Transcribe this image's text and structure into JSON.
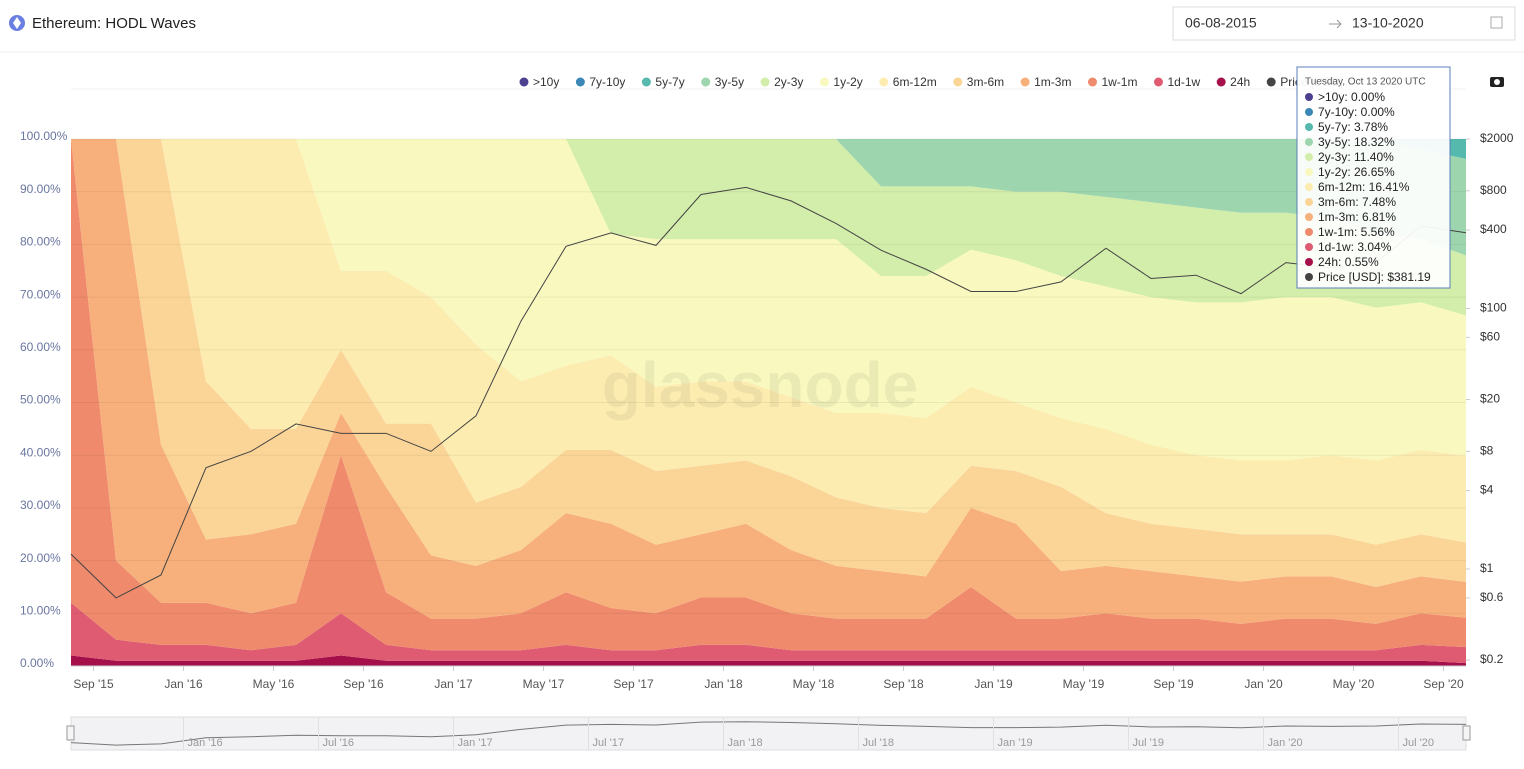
{
  "header": {
    "title": "Ethereum: HODL Waves",
    "date_from": "06-08-2015",
    "date_to": "13-10-2020"
  },
  "chart_data": {
    "type": "stacked_area",
    "watermark": "glassnode",
    "x": [
      "2015-08",
      "2015-10",
      "2015-12",
      "2016-02",
      "2016-04",
      "2016-06",
      "2016-08",
      "2016-10",
      "2016-12",
      "2017-02",
      "2017-04",
      "2017-06",
      "2017-08",
      "2017-10",
      "2017-12",
      "2018-02",
      "2018-04",
      "2018-06",
      "2018-08",
      "2018-10",
      "2018-12",
      "2019-02",
      "2019-04",
      "2019-06",
      "2019-08",
      "2019-10",
      "2019-12",
      "2020-02",
      "2020-04",
      "2020-06",
      "2020-08",
      "2020-10"
    ],
    "xlim": [
      "2015-08",
      "2020-10"
    ],
    "xticks": [
      {
        "value": "2015-09",
        "label": "Sep '15"
      },
      {
        "value": "2016-01",
        "label": "Jan '16"
      },
      {
        "value": "2016-05",
        "label": "May '16"
      },
      {
        "value": "2016-09",
        "label": "Sep '16"
      },
      {
        "value": "2017-01",
        "label": "Jan '17"
      },
      {
        "value": "2017-05",
        "label": "May '17"
      },
      {
        "value": "2017-09",
        "label": "Sep '17"
      },
      {
        "value": "2018-01",
        "label": "Jan '18"
      },
      {
        "value": "2018-05",
        "label": "May '18"
      },
      {
        "value": "2018-09",
        "label": "Sep '18"
      },
      {
        "value": "2019-01",
        "label": "Jan '19"
      },
      {
        "value": "2019-05",
        "label": "May '19"
      },
      {
        "value": "2019-09",
        "label": "Sep '19"
      },
      {
        "value": "2020-01",
        "label": "Jan '20"
      },
      {
        "value": "2020-05",
        "label": "May '20"
      },
      {
        "value": "2020-09",
        "label": "Sep '20"
      }
    ],
    "navigator_ticks": [
      {
        "value": "2016-01",
        "label": "Jan '16"
      },
      {
        "value": "2016-07",
        "label": "Jul '16"
      },
      {
        "value": "2017-01",
        "label": "Jan '17"
      },
      {
        "value": "2017-07",
        "label": "Jul '17"
      },
      {
        "value": "2018-01",
        "label": "Jan '18"
      },
      {
        "value": "2018-07",
        "label": "Jul '18"
      },
      {
        "value": "2019-01",
        "label": "Jan '19"
      },
      {
        "value": "2019-07",
        "label": "Jul '19"
      },
      {
        "value": "2020-01",
        "label": "Jan '20"
      },
      {
        "value": "2020-07",
        "label": "Jul '20"
      }
    ],
    "ylim": [
      0,
      100
    ],
    "yticks": [
      {
        "value": 0,
        "label": "0.00%"
      },
      {
        "value": 10,
        "label": "10.00%"
      },
      {
        "value": 20,
        "label": "20.00%"
      },
      {
        "value": 30,
        "label": "30.00%"
      },
      {
        "value": 40,
        "label": "40.00%"
      },
      {
        "value": 50,
        "label": "50.00%"
      },
      {
        "value": 60,
        "label": "60.00%"
      },
      {
        "value": 70,
        "label": "70.00%"
      },
      {
        "value": 80,
        "label": "80.00%"
      },
      {
        "value": 90,
        "label": "90.00%"
      },
      {
        "value": 100,
        "label": "100.00%"
      }
    ],
    "y2lim": [
      0.18,
      2000
    ],
    "y2_log": true,
    "y2ticks": [
      {
        "value": 0.2,
        "label": "$0.2"
      },
      {
        "value": 0.6,
        "label": "$0.6"
      },
      {
        "value": 1,
        "label": "$1"
      },
      {
        "value": 4,
        "label": "$4"
      },
      {
        "value": 8,
        "label": "$8"
      },
      {
        "value": 20,
        "label": "$20"
      },
      {
        "value": 60,
        "label": "$60"
      },
      {
        "value": 100,
        "label": "$100"
      },
      {
        "value": 400,
        "label": "$400"
      },
      {
        "value": 800,
        "label": "$800"
      },
      {
        "value": 2000,
        "label": "$2000"
      }
    ],
    "grid": true,
    "series": [
      {
        "name": ">10y",
        "color": "#4b3f8f",
        "values": [
          0,
          0,
          0,
          0,
          0,
          0,
          0,
          0,
          0,
          0,
          0,
          0,
          0,
          0,
          0,
          0,
          0,
          0,
          0,
          0,
          0,
          0,
          0,
          0,
          0,
          0,
          0,
          0,
          0,
          0,
          0,
          0
        ]
      },
      {
        "name": "7y-10y",
        "color": "#3a87b8",
        "values": [
          0,
          0,
          0,
          0,
          0,
          0,
          0,
          0,
          0,
          0,
          0,
          0,
          0,
          0,
          0,
          0,
          0,
          0,
          0,
          0,
          0,
          0,
          0,
          0,
          0,
          0,
          0,
          0,
          0,
          0,
          0,
          0
        ]
      },
      {
        "name": "5y-7y",
        "color": "#55b9ad",
        "values": [
          0,
          0,
          0,
          0,
          0,
          0,
          0,
          0,
          0,
          0,
          0,
          0,
          0,
          0,
          0,
          0,
          0,
          0,
          0,
          0,
          0,
          0,
          0,
          0,
          0,
          0,
          0,
          0,
          0,
          0,
          2,
          3.78
        ]
      },
      {
        "name": "3y-5y",
        "color": "#9dd6ae",
        "values": [
          0,
          0,
          0,
          0,
          0,
          0,
          0,
          0,
          0,
          0,
          0,
          0,
          0,
          0,
          0,
          0,
          0,
          0,
          9,
          9,
          9,
          10,
          10,
          11,
          12,
          13,
          14,
          14,
          15,
          18,
          17,
          18.32
        ]
      },
      {
        "name": "2y-3y",
        "color": "#d3edaa",
        "values": [
          0,
          0,
          0,
          0,
          0,
          0,
          0,
          0,
          0,
          0,
          0,
          0,
          18,
          19,
          19,
          19,
          19,
          19,
          17,
          17,
          12,
          13,
          16,
          17,
          18,
          18,
          17,
          16,
          15,
          14,
          12,
          11.4
        ]
      },
      {
        "name": "1y-2y",
        "color": "#f8f8bf",
        "values": [
          0,
          0,
          0,
          0,
          0,
          0,
          25,
          25,
          30,
          39,
          46,
          43,
          23,
          28,
          27,
          27,
          30,
          33,
          26,
          27,
          26,
          27,
          27,
          27,
          28,
          29,
          30,
          31,
          30,
          29,
          28,
          26.65
        ]
      },
      {
        "name": "6m-12m",
        "color": "#fcecb0",
        "values": [
          0,
          0,
          0,
          46,
          55,
          55,
          15,
          29,
          24,
          30,
          20,
          16,
          18,
          16,
          16,
          15,
          15,
          16,
          18,
          18,
          15,
          13,
          13,
          16,
          15,
          14,
          14,
          14,
          15,
          16,
          16,
          16.41
        ]
      },
      {
        "name": "3m-6m",
        "color": "#fbd597",
        "values": [
          0,
          0,
          58,
          30,
          20,
          18,
          12,
          12,
          25,
          12,
          12,
          12,
          14,
          14,
          13,
          12,
          14,
          13,
          12,
          12,
          8,
          10,
          16,
          10,
          9,
          9,
          9,
          8,
          8,
          8,
          8,
          7.48
        ]
      },
      {
        "name": "1m-3m",
        "color": "#f7b07c",
        "values": [
          0,
          80,
          30,
          12,
          15,
          15,
          8,
          20,
          12,
          10,
          12,
          15,
          16,
          13,
          12,
          14,
          12,
          10,
          9,
          8,
          15,
          18,
          9,
          9,
          9,
          8,
          8,
          8,
          8,
          7,
          7,
          6.81
        ]
      },
      {
        "name": "1w-1m",
        "color": "#ef8a6c",
        "values": [
          88,
          15,
          8,
          8,
          7,
          8,
          30,
          10,
          6,
          6,
          7,
          10,
          8,
          7,
          9,
          9,
          7,
          6,
          6,
          6,
          12,
          6,
          6,
          7,
          6,
          6,
          5,
          6,
          6,
          5,
          6,
          5.56
        ]
      },
      {
        "name": "1d-1w",
        "color": "#de5b72",
        "values": [
          10,
          4,
          3,
          3,
          2,
          3,
          8,
          3,
          2,
          2,
          2,
          3,
          2,
          2,
          3,
          3,
          2,
          2,
          2,
          2,
          2,
          2,
          2,
          2,
          2,
          2,
          2,
          2,
          2,
          2,
          3,
          3.04
        ]
      },
      {
        "name": "24h",
        "color": "#a50f4a",
        "values": [
          2,
          1,
          1,
          1,
          1,
          1,
          2,
          1,
          1,
          1,
          1,
          1,
          1,
          1,
          1,
          1,
          1,
          1,
          1,
          1,
          1,
          1,
          1,
          1,
          1,
          1,
          1,
          1,
          1,
          1,
          1,
          0.55
        ]
      },
      {
        "name": "Price [USD]",
        "color": "#444444",
        "axis": "y2",
        "values": [
          1.3,
          0.6,
          0.9,
          6,
          8,
          13,
          11,
          11,
          8,
          15,
          80,
          300,
          380,
          305,
          750,
          850,
          670,
          450,
          280,
          200,
          135,
          135,
          160,
          290,
          170,
          180,
          130,
          225,
          205,
          225,
          430,
          381.19
        ]
      }
    ],
    "tooltip": {
      "title": "Tuesday, Oct 13 2020 UTC",
      "items": [
        ">10y: 0.00%",
        "7y-10y: 0.00%",
        "5y-7y: 3.78%",
        "3y-5y: 18.32%",
        "2y-3y: 11.40%",
        "1y-2y: 26.65%",
        "6m-12m: 16.41%",
        "3m-6m: 7.48%",
        "1m-3m: 6.81%",
        "1w-1m: 5.56%",
        "1d-1w: 3.04%",
        "24h: 0.55%",
        "Price [USD]: $381.19"
      ]
    }
  }
}
